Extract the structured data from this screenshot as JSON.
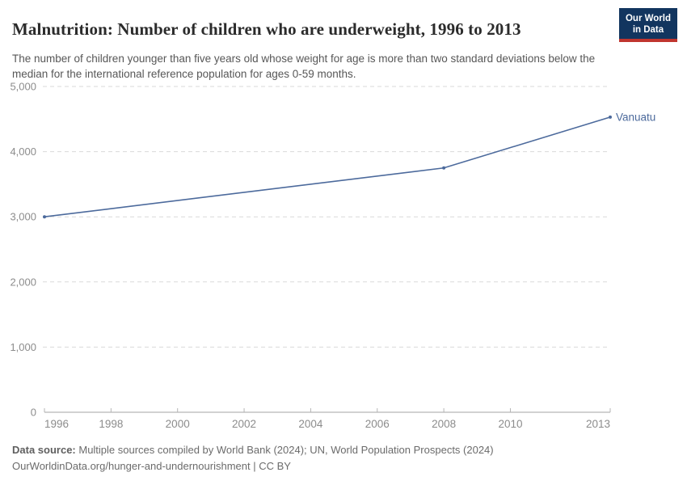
{
  "header": {
    "title": "Malnutrition: Number of children who are underweight, 1996 to 2013",
    "subtitle": "The number of children younger than five years old whose weight for age is more than two standard deviations below the median for the international reference population for ages 0-59 months.",
    "logo": {
      "line1": "Our World",
      "line2": "in Data",
      "bg_color": "#12355f",
      "accent_color": "#c0352f"
    }
  },
  "chart_data": {
    "type": "line",
    "title": "Malnutrition: Number of children who are underweight, 1996 to 2013",
    "xlabel": "",
    "ylabel": "",
    "xlim": [
      1996,
      2013
    ],
    "ylim": [
      0,
      5000
    ],
    "x_ticks": [
      1996,
      1998,
      2000,
      2002,
      2004,
      2006,
      2008,
      2010,
      2013
    ],
    "x_tick_labels": [
      "1996",
      "1998",
      "2000",
      "2002",
      "2004",
      "2006",
      "2008",
      "2010",
      "2013"
    ],
    "y_ticks": [
      0,
      1000,
      2000,
      3000,
      4000,
      5000
    ],
    "y_tick_labels": [
      "0",
      "1,000",
      "2,000",
      "3,000",
      "4,000",
      "5,000"
    ],
    "grid": "horizontal-dashed",
    "legend_position": "end-of-line-label",
    "series": [
      {
        "name": "Vanuatu",
        "color": "#4c6a9c",
        "points": [
          {
            "x": 1996,
            "y": 3000
          },
          {
            "x": 2008,
            "y": 3750
          },
          {
            "x": 2013,
            "y": 4530
          }
        ]
      }
    ],
    "colors": {
      "gridline": "#d9d9d9",
      "axis": "#a3a3a3",
      "tick": "#b5b5b5",
      "tick_label": "#8c8c8c"
    }
  },
  "footer": {
    "source_label": "Data source:",
    "source_text": " Multiple sources compiled by World Bank (2024); UN, World Population Prospects (2024)",
    "license_line": "OurWorldinData.org/hunger-and-undernourishment | CC BY"
  }
}
